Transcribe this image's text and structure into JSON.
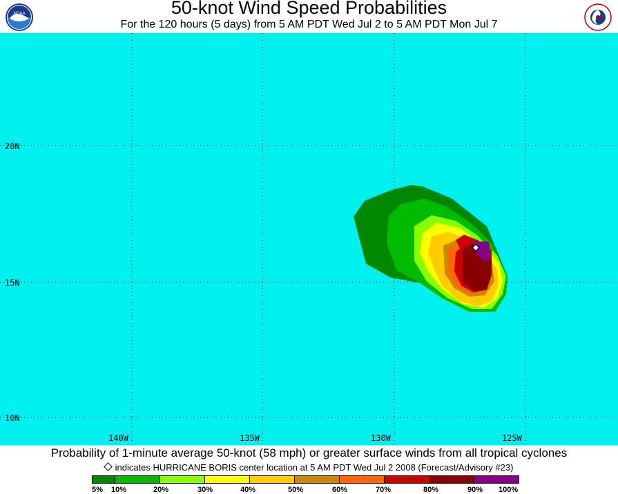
{
  "header": {
    "title": "50-knot Wind Speed Probabilities",
    "subtitle": "For the 120 hours (5 days) from 5 AM PDT Wed Jul 2 to 5 AM PDT Mon Jul 7"
  },
  "logos": {
    "left": "noaa-logo",
    "right": "nws-logo"
  },
  "map": {
    "background_color": "#00f0f0",
    "latitude_labels": [
      "20N",
      "15N",
      "10N"
    ],
    "longitude_labels": [
      "140W",
      "135W",
      "130W",
      "125W"
    ],
    "probability_colors": [
      "#008800",
      "#00bb00",
      "#88ff00",
      "#ffff00",
      "#ffcc00",
      "#cc8800",
      "#ff6600",
      "#cc0000",
      "#880000",
      "#880088"
    ],
    "storm_marker": "hurricane-center-diamond"
  },
  "footer": {
    "caption": "Probability of 1-minute average 50-knot (58 mph) or greater surface winds from all tropical cyclones",
    "note": "indicates HURRICANE BORIS center location at 5 AM PDT Wed Jul 2 2008 (Forecast/Advisory #23)"
  },
  "legend": {
    "labels": [
      "5%",
      "10%",
      "20%",
      "30%",
      "40%",
      "50%",
      "60%",
      "70%",
      "80%",
      "90%",
      "100%"
    ]
  }
}
